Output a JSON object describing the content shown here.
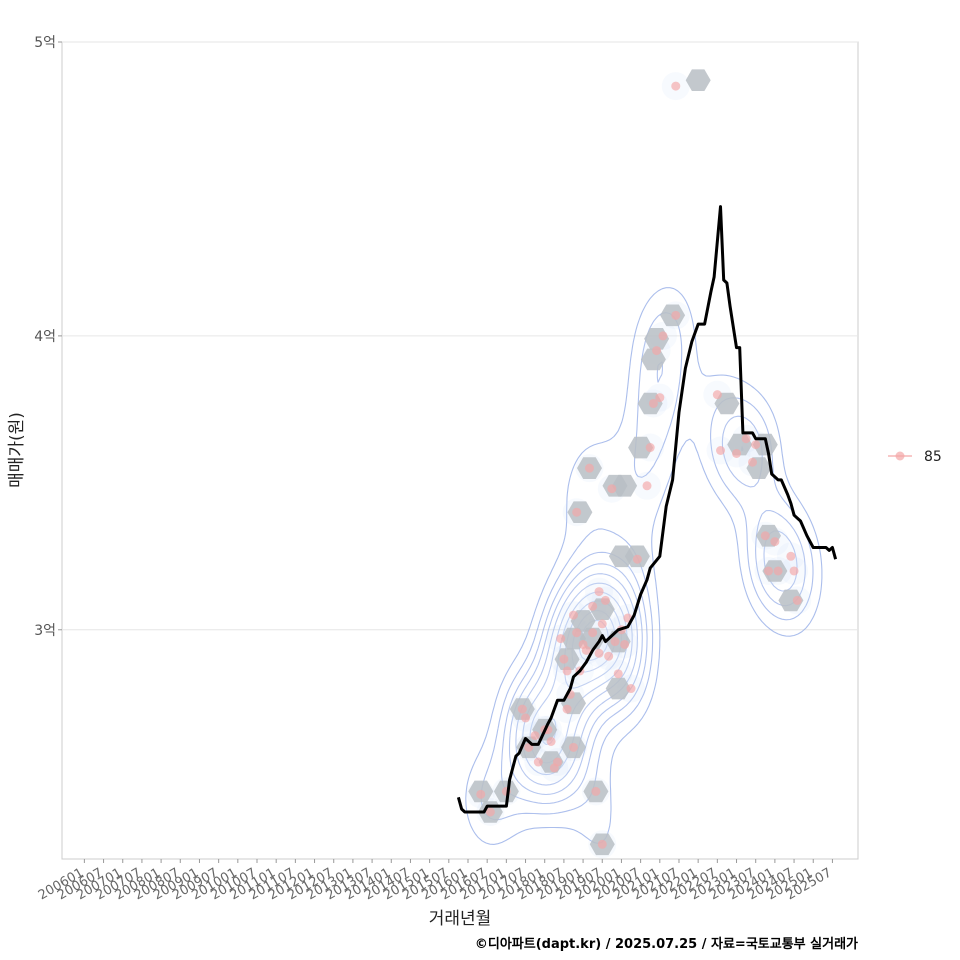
{
  "chart_data": {
    "type": "scatter",
    "ylabel": "매매가(원)",
    "xlabel": "거래년월",
    "caption": "©디아파트(dapt.kr) / 2025.07.25 / 자료=국토교통부 실거래가",
    "y_ticks": [
      {
        "value": 3.0,
        "label": "3억"
      },
      {
        "value": 4.0,
        "label": "4억"
      },
      {
        "value": 5.0,
        "label": "5억"
      }
    ],
    "ylim": [
      2.22,
      5.0
    ],
    "x_range": [
      "2005-06",
      "2026-03"
    ],
    "x_ticks": [
      "200601",
      "200607",
      "200701",
      "200707",
      "200801",
      "200807",
      "200901",
      "200907",
      "201001",
      "201007",
      "201101",
      "201107",
      "201201",
      "201207",
      "201301",
      "201307",
      "201401",
      "201407",
      "201501",
      "201507",
      "201601",
      "201607",
      "201701",
      "201707",
      "201801",
      "201807",
      "201901",
      "201907",
      "202001",
      "202007",
      "202101",
      "202107",
      "202201",
      "202207",
      "202301",
      "202307",
      "202401",
      "202407",
      "202501",
      "202507"
    ],
    "legend": {
      "position": "right",
      "series_name": "85",
      "color": "#f4a6a6"
    },
    "colors": {
      "points": "#f4a6a6",
      "hex": "#b9bec4",
      "line": "#000000",
      "contour": "#8fa8e6",
      "contour_fill": "#cfe0f7"
    },
    "series": [
      {
        "name": "85",
        "kind": "points",
        "points": [
          [
            "2016-05",
            2.44
          ],
          [
            "2016-08",
            2.38
          ],
          [
            "2017-01",
            2.45
          ],
          [
            "2017-06",
            2.73
          ],
          [
            "2017-07",
            2.7
          ],
          [
            "2017-08",
            2.6
          ],
          [
            "2017-10",
            2.64
          ],
          [
            "2017-11",
            2.55
          ],
          [
            "2018-01",
            2.66
          ],
          [
            "2018-02",
            2.66
          ],
          [
            "2018-03",
            2.62
          ],
          [
            "2018-04",
            2.53
          ],
          [
            "2018-05",
            2.55
          ],
          [
            "2018-06",
            2.97
          ],
          [
            "2018-07",
            2.9
          ],
          [
            "2018-08",
            2.86
          ],
          [
            "2018-08",
            2.73
          ],
          [
            "2018-09",
            2.78
          ],
          [
            "2018-10",
            3.05
          ],
          [
            "2018-10",
            2.6
          ],
          [
            "2018-11",
            2.99
          ],
          [
            "2018-11",
            3.4
          ],
          [
            "2018-12",
            2.86
          ],
          [
            "2019-01",
            2.95
          ],
          [
            "2019-02",
            2.93
          ],
          [
            "2019-03",
            3.55
          ],
          [
            "2019-04",
            2.99
          ],
          [
            "2019-04",
            3.08
          ],
          [
            "2019-05",
            2.45
          ],
          [
            "2019-06",
            3.13
          ],
          [
            "2019-06",
            2.92
          ],
          [
            "2019-07",
            2.27
          ],
          [
            "2019-07",
            3.02
          ],
          [
            "2019-08",
            3.1
          ],
          [
            "2019-09",
            2.91
          ],
          [
            "2019-10",
            3.48
          ],
          [
            "2019-11",
            2.96
          ],
          [
            "2019-12",
            2.85
          ],
          [
            "2020-01",
            3.0
          ],
          [
            "2020-02",
            2.95
          ],
          [
            "2020-03",
            3.04
          ],
          [
            "2020-04",
            2.8
          ],
          [
            "2020-06",
            3.24
          ],
          [
            "2020-09",
            3.49
          ],
          [
            "2020-10",
            3.62
          ],
          [
            "2020-11",
            3.77
          ],
          [
            "2020-12",
            3.95
          ],
          [
            "2021-01",
            3.79
          ],
          [
            "2021-02",
            4.0
          ],
          [
            "2021-06",
            4.07
          ],
          [
            "2021-06",
            4.85
          ],
          [
            "2022-07",
            3.8
          ],
          [
            "2022-08",
            3.61
          ],
          [
            "2023-01",
            3.6
          ],
          [
            "2023-04",
            3.65
          ],
          [
            "2023-06",
            3.57
          ],
          [
            "2023-07",
            3.63
          ],
          [
            "2023-10",
            3.32
          ],
          [
            "2023-11",
            3.2
          ],
          [
            "2024-01",
            3.3
          ],
          [
            "2024-02",
            3.2
          ],
          [
            "2024-06",
            3.25
          ],
          [
            "2024-07",
            3.2
          ],
          [
            "2024-08",
            3.1
          ]
        ]
      },
      {
        "name": "moving-average",
        "kind": "line",
        "points": [
          [
            "2015-10",
            2.43
          ],
          [
            "2015-11",
            2.39
          ],
          [
            "2015-12",
            2.38
          ],
          [
            "2016-06",
            2.38
          ],
          [
            "2016-07",
            2.4
          ],
          [
            "2017-01",
            2.4
          ],
          [
            "2017-02",
            2.49
          ],
          [
            "2017-04",
            2.57
          ],
          [
            "2017-05",
            2.58
          ],
          [
            "2017-07",
            2.63
          ],
          [
            "2017-09",
            2.61
          ],
          [
            "2017-11",
            2.61
          ],
          [
            "2018-02",
            2.68
          ],
          [
            "2018-03",
            2.7
          ],
          [
            "2018-05",
            2.76
          ],
          [
            "2018-07",
            2.76
          ],
          [
            "2018-09",
            2.8
          ],
          [
            "2018-10",
            2.84
          ],
          [
            "2018-12",
            2.86
          ],
          [
            "2019-02",
            2.89
          ],
          [
            "2019-04",
            2.93
          ],
          [
            "2019-06",
            2.96
          ],
          [
            "2019-07",
            2.98
          ],
          [
            "2019-08",
            2.96
          ],
          [
            "2019-09",
            2.97
          ],
          [
            "2019-12",
            3.0
          ],
          [
            "2020-03",
            3.01
          ],
          [
            "2020-05",
            3.05
          ],
          [
            "2020-07",
            3.12
          ],
          [
            "2020-09",
            3.17
          ],
          [
            "2020-10",
            3.21
          ],
          [
            "2021-01",
            3.25
          ],
          [
            "2021-03",
            3.42
          ],
          [
            "2021-05",
            3.51
          ],
          [
            "2021-07",
            3.74
          ],
          [
            "2021-09",
            3.89
          ],
          [
            "2021-11",
            3.98
          ],
          [
            "2022-01",
            4.04
          ],
          [
            "2022-03",
            4.04
          ],
          [
            "2022-05",
            4.15
          ],
          [
            "2022-06",
            4.2
          ],
          [
            "2022-08",
            4.44
          ],
          [
            "2022-09",
            4.19
          ],
          [
            "2022-10",
            4.18
          ],
          [
            "2022-11",
            4.1
          ],
          [
            "2023-01",
            3.96
          ],
          [
            "2023-02",
            3.96
          ],
          [
            "2023-03",
            3.67
          ],
          [
            "2023-06",
            3.67
          ],
          [
            "2023-07",
            3.65
          ],
          [
            "2023-10",
            3.65
          ],
          [
            "2023-11",
            3.6
          ],
          [
            "2023-12",
            3.53
          ],
          [
            "2024-02",
            3.51
          ],
          [
            "2024-03",
            3.51
          ],
          [
            "2024-05",
            3.46
          ],
          [
            "2024-06",
            3.43
          ],
          [
            "2024-07",
            3.39
          ],
          [
            "2024-08",
            3.38
          ],
          [
            "2024-09",
            3.37
          ],
          [
            "2024-11",
            3.32
          ],
          [
            "2025-01",
            3.28
          ],
          [
            "2025-05",
            3.28
          ],
          [
            "2025-06",
            3.27
          ],
          [
            "2025-07",
            3.28
          ],
          [
            "2025-08",
            3.24
          ]
        ]
      },
      {
        "name": "hexbin",
        "kind": "hex",
        "points": [
          [
            "2016-05",
            2.45
          ],
          [
            "2016-08",
            2.38
          ],
          [
            "2017-01",
            2.45
          ],
          [
            "2017-06",
            2.73
          ],
          [
            "2017-08",
            2.6
          ],
          [
            "2018-01",
            2.66
          ],
          [
            "2018-03",
            2.55
          ],
          [
            "2018-08",
            2.9
          ],
          [
            "2018-10",
            2.97
          ],
          [
            "2018-10",
            2.75
          ],
          [
            "2018-10",
            2.6
          ],
          [
            "2018-12",
            3.4
          ],
          [
            "2019-01",
            3.03
          ],
          [
            "2019-03",
            3.55
          ],
          [
            "2019-04",
            2.97
          ],
          [
            "2019-05",
            2.45
          ],
          [
            "2019-07",
            2.27
          ],
          [
            "2019-07",
            3.07
          ],
          [
            "2019-11",
            3.49
          ],
          [
            "2019-12",
            2.96
          ],
          [
            "2019-12",
            2.8
          ],
          [
            "2020-01",
            3.25
          ],
          [
            "2020-02",
            3.49
          ],
          [
            "2020-06",
            3.25
          ],
          [
            "2020-07",
            3.62
          ],
          [
            "2020-10",
            3.77
          ],
          [
            "2020-11",
            3.92
          ],
          [
            "2020-12",
            3.99
          ],
          [
            "2021-05",
            4.07
          ],
          [
            "2022-01",
            4.87
          ],
          [
            "2022-10",
            3.77
          ],
          [
            "2023-02",
            3.63
          ],
          [
            "2023-08",
            3.55
          ],
          [
            "2023-11",
            3.32
          ],
          [
            "2024-01",
            3.2
          ],
          [
            "2024-06",
            3.1
          ],
          [
            "2023-10",
            3.63
          ]
        ]
      }
    ]
  }
}
